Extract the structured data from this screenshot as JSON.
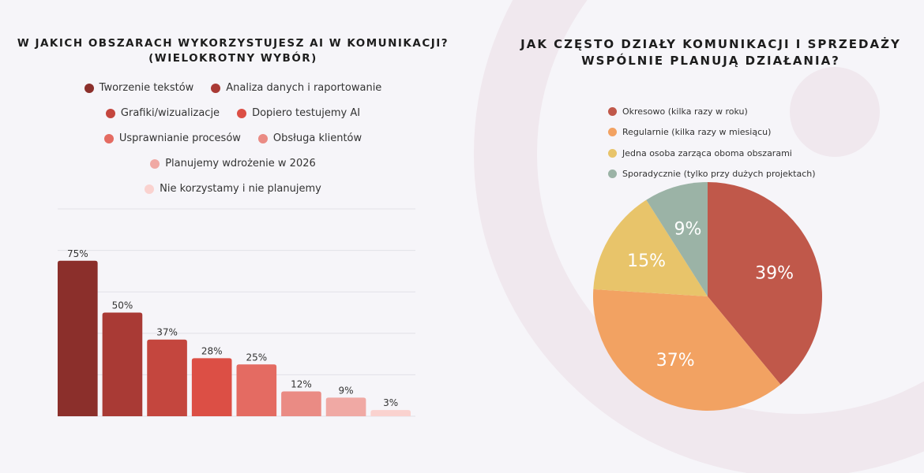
{
  "chart_data": [
    {
      "type": "bar",
      "title": "W JAKICH OBSZARACH WYKORZYSTUJESZ AI W KOMUNIKACJI?",
      "subtitle": "(WIELOKROTNY WYBÓR)",
      "categories": [
        "Tworzenie tekstów",
        "Analiza danych i raportowanie",
        "Grafiki/wizualizacje",
        "Dopiero testujemy AI",
        "Usprawnianie procesów",
        "Obsługa klientów",
        "Planujemy wdrożenie w 2026",
        "Nie korzystamy i nie planujemy"
      ],
      "values": [
        75,
        50,
        37,
        28,
        25,
        12,
        9,
        3
      ],
      "labels": [
        "75%",
        "50%",
        "37%",
        "28%",
        "25%",
        "12%",
        "9%",
        "3%"
      ],
      "colors": [
        "#8b2f2b",
        "#a93a35",
        "#c4463e",
        "#dc4f45",
        "#e46b62",
        "#ea8b84",
        "#f0a9a4",
        "#fad2cf"
      ],
      "ylim": [
        0,
        100
      ],
      "grid": true,
      "legend": "top"
    },
    {
      "type": "pie",
      "title": "JAK CZĘSTO DZIAŁY KOMUNIKACJI I SPRZEDAŻY WSPÓLNIE PLANUJĄ DZIAŁANIA?",
      "categories": [
        "Okresowo (kilka razy w roku)",
        "Regularnie (kilka razy w miesiącu)",
        "Jedna osoba zarząca oboma obszarami",
        "Sporadycznie (tylko przy dużych projektach)"
      ],
      "values": [
        39,
        37,
        15,
        9
      ],
      "labels": [
        "39%",
        "37%",
        "15%",
        "9%"
      ],
      "colors": [
        "#c0584a",
        "#f2a262",
        "#e8c46a",
        "#9bb3a6"
      ],
      "legend": "top"
    }
  ]
}
